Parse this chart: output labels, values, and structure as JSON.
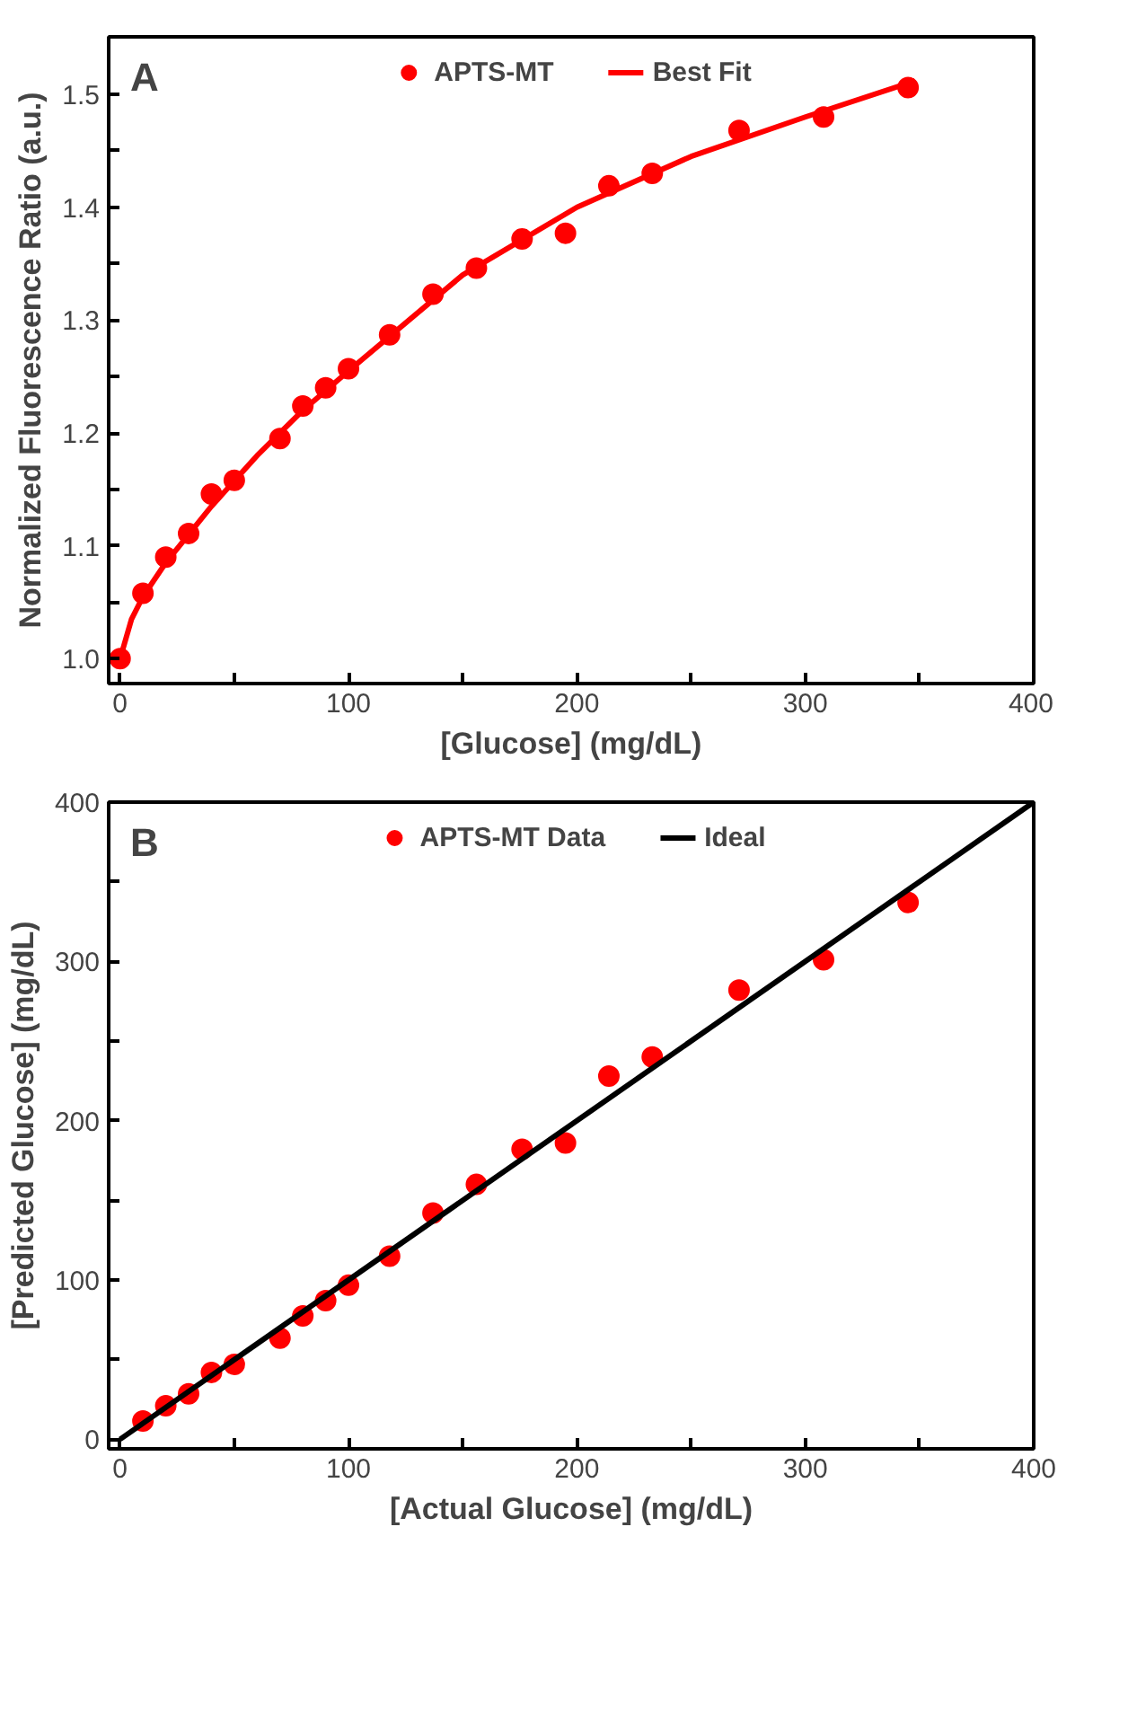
{
  "chart_data": [
    {
      "type": "scatter",
      "xlabel": "[Glucose] (mg/dL)",
      "ylabel": "Normalized Fluorescence Ratio (a.u.)",
      "annotations": [
        "A"
      ],
      "xlim": [
        -5,
        400
      ],
      "ylim": [
        0.978,
        1.551
      ],
      "xticks": [
        0,
        {
          "value": 50,
          "label": null
        },
        100,
        {
          "value": 150,
          "label": null
        },
        200,
        {
          "value": 250,
          "label": null
        },
        300,
        {
          "value": 350,
          "label": null
        },
        400
      ],
      "yticks": [
        {
          "value": 1.0,
          "label": "1.0"
        },
        {
          "value": 1.05,
          "label": null
        },
        {
          "value": 1.1,
          "label": "1.1"
        },
        {
          "value": 1.15,
          "label": null
        },
        {
          "value": 1.2,
          "label": "1.2"
        },
        {
          "value": 1.25,
          "label": null
        },
        {
          "value": 1.3,
          "label": "1.3"
        },
        {
          "value": 1.35,
          "label": null
        },
        {
          "value": 1.4,
          "label": "1.4"
        },
        {
          "value": 1.45,
          "label": null
        },
        {
          "value": 1.5,
          "label": "1.5"
        }
      ],
      "legend": "top",
      "grid": false,
      "series": [
        {
          "name": "APTS-MT",
          "marker": "circle",
          "color": "#ff0000",
          "x": [
            0,
            10,
            20,
            30,
            40,
            50,
            70,
            80,
            90,
            100,
            118,
            137,
            156,
            176,
            195,
            214,
            233,
            271,
            308,
            345
          ],
          "values": [
            1.0,
            1.058,
            1.09,
            1.111,
            1.146,
            1.158,
            1.195,
            1.224,
            1.24,
            1.257,
            1.287,
            1.323,
            1.346,
            1.372,
            1.377,
            1.419,
            1.43,
            1.468,
            1.48,
            1.506
          ]
        },
        {
          "name": "Best Fit",
          "type": "line",
          "color": "#ff0000",
          "x": [
            0,
            5,
            10,
            20,
            40,
            60,
            80,
            100,
            150,
            200,
            250,
            300,
            348
          ],
          "values": [
            1.0,
            1.035,
            1.055,
            1.085,
            1.135,
            1.18,
            1.22,
            1.255,
            1.34,
            1.4,
            1.445,
            1.48,
            1.512
          ]
        }
      ]
    },
    {
      "type": "scatter",
      "xlabel": "[Actual Glucose] (mg/dL)",
      "ylabel": "[Predicted Glucose] (mg/dL)",
      "annotations": [
        "B"
      ],
      "xlim": [
        -5,
        400
      ],
      "ylim": [
        -6,
        400
      ],
      "xticks": [
        0,
        {
          "value": 50,
          "label": null
        },
        100,
        {
          "value": 150,
          "label": null
        },
        200,
        {
          "value": 250,
          "label": null
        },
        300,
        {
          "value": 350,
          "label": null
        },
        400
      ],
      "yticks": [
        0,
        {
          "value": 50,
          "label": null
        },
        100,
        {
          "value": 150,
          "label": null
        },
        200,
        {
          "value": 250,
          "label": null
        },
        300,
        {
          "value": 350,
          "label": null
        },
        400
      ],
      "legend": "top",
      "grid": false,
      "series": [
        {
          "name": "APTS-MT Data",
          "marker": "circle",
          "color": "#ff0000",
          "x": [
            10,
            20,
            30,
            40,
            50,
            70,
            80,
            90,
            100,
            118,
            137,
            156,
            176,
            195,
            214,
            233,
            271,
            308,
            345
          ],
          "values": [
            11.5,
            21,
            28.5,
            42,
            47,
            63.5,
            77.5,
            87,
            96.7,
            115,
            142,
            160,
            182,
            186,
            228,
            240,
            282,
            301,
            337
          ]
        },
        {
          "name": "Ideal",
          "type": "line",
          "color": "#000000",
          "x": [
            0,
            400
          ],
          "values": [
            0,
            400
          ]
        }
      ]
    }
  ]
}
